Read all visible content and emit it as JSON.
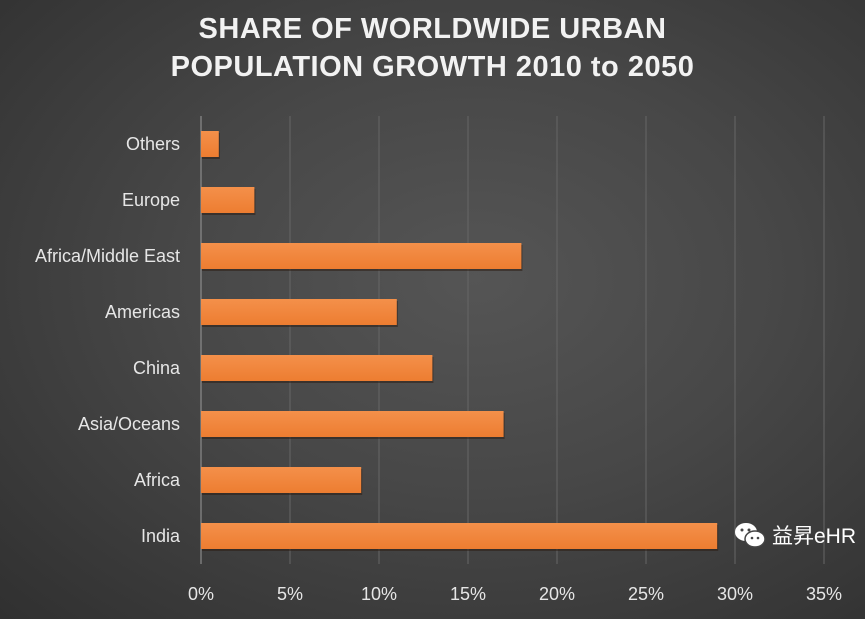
{
  "chart_data": {
    "type": "bar",
    "orientation": "horizontal",
    "title": "SHARE OF WORLDWIDE URBAN POPULATION GROWTH 2010 to 2050",
    "title_lines": [
      "SHARE OF WORLDWIDE URBAN",
      "POPULATION GROWTH 2010 to 2050"
    ],
    "categories": [
      "Others",
      "Europe",
      "Africa/Middle East",
      "Americas",
      "China",
      "Asia/Oceans",
      "Africa",
      "India"
    ],
    "values": [
      1,
      3,
      18,
      11,
      13,
      17,
      9,
      29
    ],
    "unit": "%",
    "xlim": [
      0,
      35
    ],
    "xticks": [
      "0%",
      "5%",
      "10%",
      "15%",
      "20%",
      "25%",
      "30%",
      "35%"
    ],
    "grid": "vertical",
    "legend": "none",
    "colors": {
      "bar": "#ed7d31",
      "background": "#404040",
      "text": "#e6e6e6",
      "grid": "#666666"
    }
  },
  "watermark": {
    "text": "益昇eHR",
    "icon": "wechat-icon"
  }
}
